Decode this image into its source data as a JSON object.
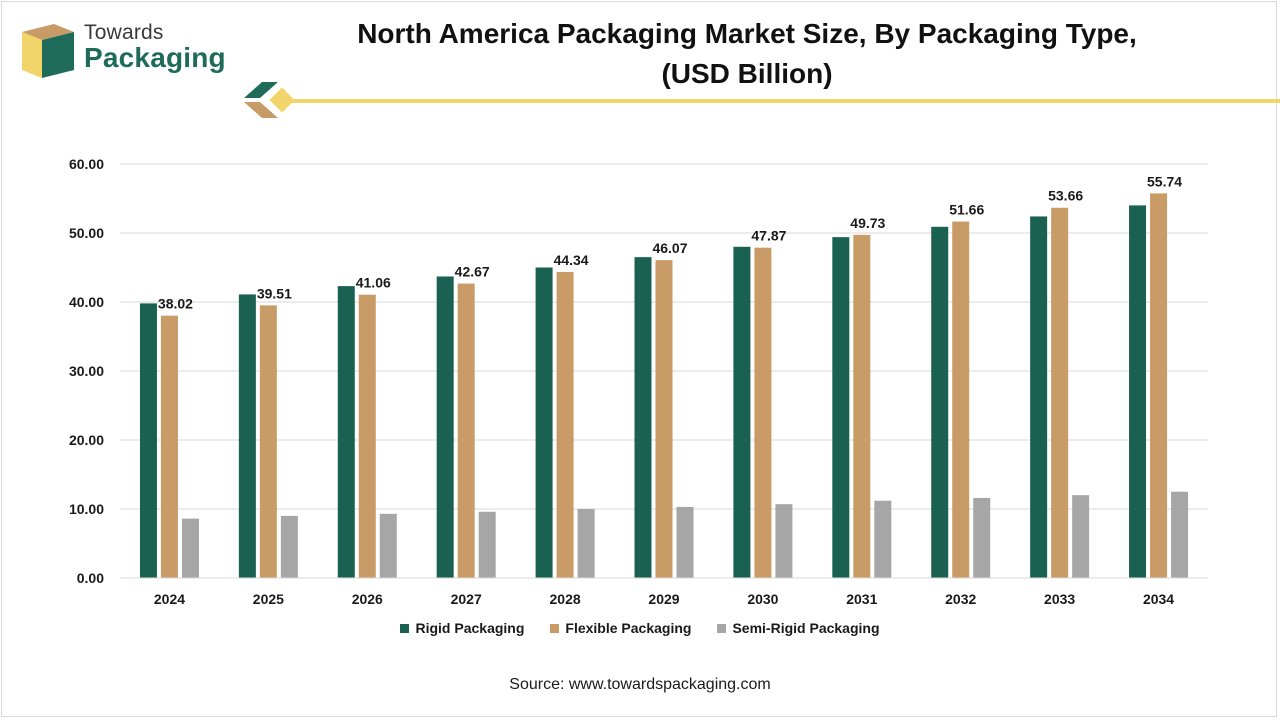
{
  "brand": {
    "line1": "Towards",
    "line2": "Packaging"
  },
  "colors": {
    "rigid": "#1b6151",
    "flexible": "#c99b66",
    "semirigid": "#a6a6a6",
    "accent_yellow": "#f2d56a",
    "brand_green": "#1e6b5a",
    "brand_tan": "#c79a66"
  },
  "source": "Source: www.towardspackaging.com",
  "chart_data": {
    "type": "bar",
    "title": "North America Packaging Market Size, By Packaging Type, (USD Billion)",
    "title_lines": [
      "North America Packaging Market Size, By Packaging Type,",
      "(USD Billion)"
    ],
    "categories": [
      "2024",
      "2025",
      "2026",
      "2027",
      "2028",
      "2029",
      "2030",
      "2031",
      "2032",
      "2033",
      "2034"
    ],
    "series": [
      {
        "name": "Rigid Packaging",
        "values": [
          39.8,
          41.1,
          42.3,
          43.7,
          45.0,
          46.5,
          48.0,
          49.4,
          50.9,
          52.4,
          54.0
        ]
      },
      {
        "name": "Flexible Packaging",
        "values": [
          38.02,
          39.51,
          41.06,
          42.67,
          44.34,
          46.07,
          47.87,
          49.73,
          51.66,
          53.66,
          55.74
        ]
      },
      {
        "name": "Semi-Rigid Packaging",
        "values": [
          8.6,
          9.0,
          9.3,
          9.6,
          10.0,
          10.3,
          10.7,
          11.2,
          11.6,
          12.0,
          12.5
        ]
      }
    ],
    "data_labels": [
      "38.02",
      "39.51",
      "41.06",
      "42.67",
      "44.34",
      "46.07",
      "47.87",
      "49.73",
      "51.66",
      "53.66",
      "55.74"
    ],
    "yticks": [
      "0.00",
      "10.00",
      "20.00",
      "30.00",
      "40.00",
      "50.00",
      "60.00"
    ],
    "ylim": [
      0,
      60
    ],
    "grid": true,
    "legend_position": "bottom"
  }
}
